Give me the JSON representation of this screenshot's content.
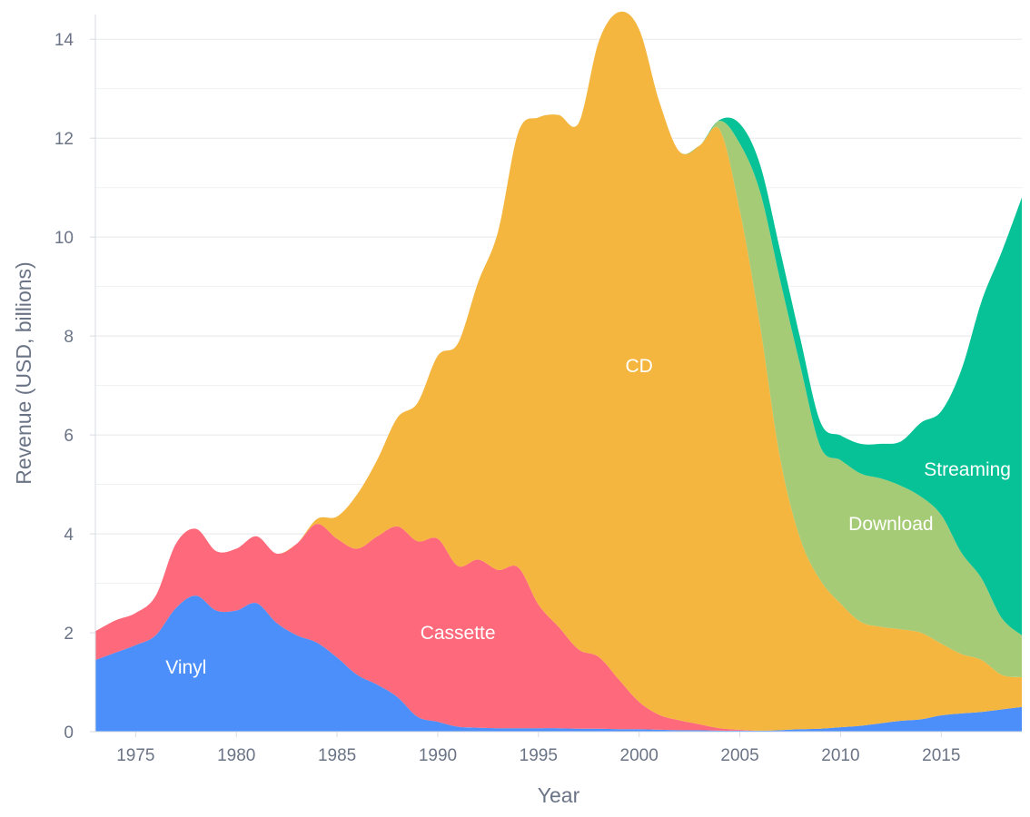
{
  "chart_data": {
    "type": "area",
    "stacked": true,
    "title": "",
    "xlabel": "Year",
    "ylabel": "Revenue (USD, billions)",
    "xlim": [
      1973,
      2019
    ],
    "ylim": [
      0,
      14.5
    ],
    "x_ticks": [
      1975,
      1980,
      1985,
      1990,
      1995,
      2000,
      2005,
      2010,
      2015
    ],
    "y_ticks": [
      0,
      2,
      4,
      6,
      8,
      10,
      12,
      14
    ],
    "grid": true,
    "x": [
      1973,
      1974,
      1975,
      1976,
      1977,
      1978,
      1979,
      1980,
      1981,
      1982,
      1983,
      1984,
      1985,
      1986,
      1987,
      1988,
      1989,
      1990,
      1991,
      1992,
      1993,
      1994,
      1995,
      1996,
      1997,
      1998,
      1999,
      2000,
      2001,
      2002,
      2003,
      2004,
      2005,
      2006,
      2007,
      2008,
      2009,
      2010,
      2011,
      2012,
      2013,
      2014,
      2015,
      2016,
      2017,
      2018,
      2019
    ],
    "series": [
      {
        "name": "Vinyl",
        "label": "Vinyl",
        "color": "#4d8ffa",
        "label_pos": [
          1977.5,
          1.3
        ],
        "values": [
          1.45,
          1.6,
          1.75,
          1.95,
          2.5,
          2.75,
          2.45,
          2.45,
          2.6,
          2.2,
          1.95,
          1.8,
          1.5,
          1.15,
          0.95,
          0.7,
          0.3,
          0.2,
          0.1,
          0.08,
          0.07,
          0.07,
          0.07,
          0.07,
          0.06,
          0.06,
          0.05,
          0.05,
          0.04,
          0.03,
          0.03,
          0.02,
          0.02,
          0.02,
          0.03,
          0.05,
          0.06,
          0.09,
          0.12,
          0.17,
          0.22,
          0.25,
          0.33,
          0.37,
          0.4,
          0.45,
          0.5
        ]
      },
      {
        "name": "Cassette",
        "label": "Cassette",
        "color": "#fe6a7b",
        "label_pos": [
          1991,
          2.0
        ],
        "values": [
          0.58,
          0.65,
          0.65,
          0.8,
          1.3,
          1.35,
          1.2,
          1.25,
          1.35,
          1.4,
          1.85,
          2.4,
          2.4,
          2.55,
          3.0,
          3.45,
          3.55,
          3.7,
          3.25,
          3.4,
          3.2,
          3.25,
          2.5,
          2.05,
          1.6,
          1.45,
          1.0,
          0.55,
          0.3,
          0.2,
          0.12,
          0.05,
          0.02,
          0.0,
          0.0,
          0.0,
          0.0,
          0.0,
          0.0,
          0.0,
          0.0,
          0.0,
          0.0,
          0.0,
          0.0,
          0.0,
          0.0
        ]
      },
      {
        "name": "CD",
        "label": "CD",
        "color": "#f4b63f",
        "label_pos": [
          2000,
          7.4
        ],
        "values": [
          0.0,
          0.0,
          0.0,
          0.0,
          0.0,
          0.0,
          0.0,
          0.0,
          0.0,
          0.0,
          0.0,
          0.1,
          0.45,
          1.1,
          1.55,
          2.2,
          2.8,
          3.7,
          4.5,
          5.6,
          6.85,
          8.8,
          9.85,
          10.35,
          10.65,
          12.45,
          13.5,
          13.6,
          12.4,
          11.5,
          11.7,
          12.1,
          10.5,
          8.2,
          5.5,
          3.85,
          3.0,
          2.5,
          2.1,
          1.95,
          1.85,
          1.75,
          1.45,
          1.2,
          1.05,
          0.7,
          0.6
        ]
      },
      {
        "name": "Download",
        "label": "Download",
        "color": "#a6cb76",
        "label_pos": [
          2012.5,
          4.2
        ],
        "values": [
          0,
          0,
          0,
          0,
          0,
          0,
          0,
          0,
          0,
          0,
          0,
          0,
          0,
          0,
          0,
          0,
          0,
          0,
          0,
          0,
          0,
          0,
          0,
          0,
          0,
          0,
          0,
          0,
          0,
          0,
          0,
          0.18,
          1.35,
          2.7,
          3.6,
          3.5,
          2.7,
          2.9,
          3.0,
          3.0,
          2.9,
          2.75,
          2.6,
          2.05,
          1.65,
          1.15,
          0.85
        ]
      },
      {
        "name": "Streaming",
        "label": "Streaming",
        "color": "#06c296",
        "label_pos": [
          2016.3,
          5.3
        ],
        "values": [
          0,
          0,
          0,
          0,
          0,
          0,
          0,
          0,
          0,
          0,
          0,
          0,
          0,
          0,
          0,
          0,
          0,
          0,
          0,
          0,
          0,
          0,
          0,
          0,
          0,
          0,
          0,
          0,
          0,
          0,
          0,
          0.02,
          0.4,
          0.55,
          0.6,
          0.55,
          0.5,
          0.5,
          0.6,
          0.7,
          0.9,
          1.5,
          2.1,
          3.7,
          5.6,
          7.4,
          8.85
        ]
      }
    ]
  }
}
